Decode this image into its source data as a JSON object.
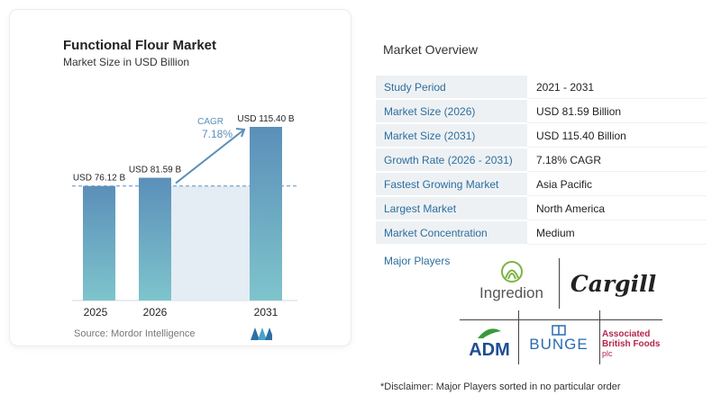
{
  "chart": {
    "title": "Functional Flour Market",
    "subtitle": "Market Size in USD Billion",
    "source": "Source:  Mordor Intelligence",
    "cagr_label": "CAGR",
    "cagr_value": "7.18%"
  },
  "chart_data": {
    "type": "bar",
    "categories": [
      "2025",
      "2026",
      "2031"
    ],
    "values": [
      76.12,
      81.59,
      115.4
    ],
    "data_labels": [
      "USD 76.12 B",
      "USD 81.59 B",
      "USD 115.40 B"
    ],
    "ylim": [
      0,
      120
    ],
    "colors": {
      "bar_top": "#5b8fb9",
      "bar_bottom": "#7ec4cc",
      "shade": "#e4ecf4",
      "arrow": "#5b8fb9",
      "cagr_text": "#5b8fb9"
    }
  },
  "overview": {
    "title": "Market Overview",
    "rows": [
      {
        "key": "Study Period",
        "value": "2021 - 2031"
      },
      {
        "key": "Market Size (2026)",
        "value": "USD 81.59 Billion"
      },
      {
        "key": "Market Size (2031)",
        "value": "USD 115.40 Billion"
      },
      {
        "key": "Growth Rate (2026 - 2031)",
        "value": "7.18% CAGR"
      },
      {
        "key": "Fastest Growing Market",
        "value": "Asia Pacific"
      },
      {
        "key": "Largest Market",
        "value": "North America"
      },
      {
        "key": "Market Concentration",
        "value": "Medium"
      }
    ],
    "players_label": "Major Players",
    "players": [
      "Ingredion",
      "Cargill",
      "ADM",
      "BUNGE",
      "Associated",
      "British Foods",
      "plc"
    ],
    "disclaimer": "*Disclaimer: Major Players sorted in no particular order"
  }
}
